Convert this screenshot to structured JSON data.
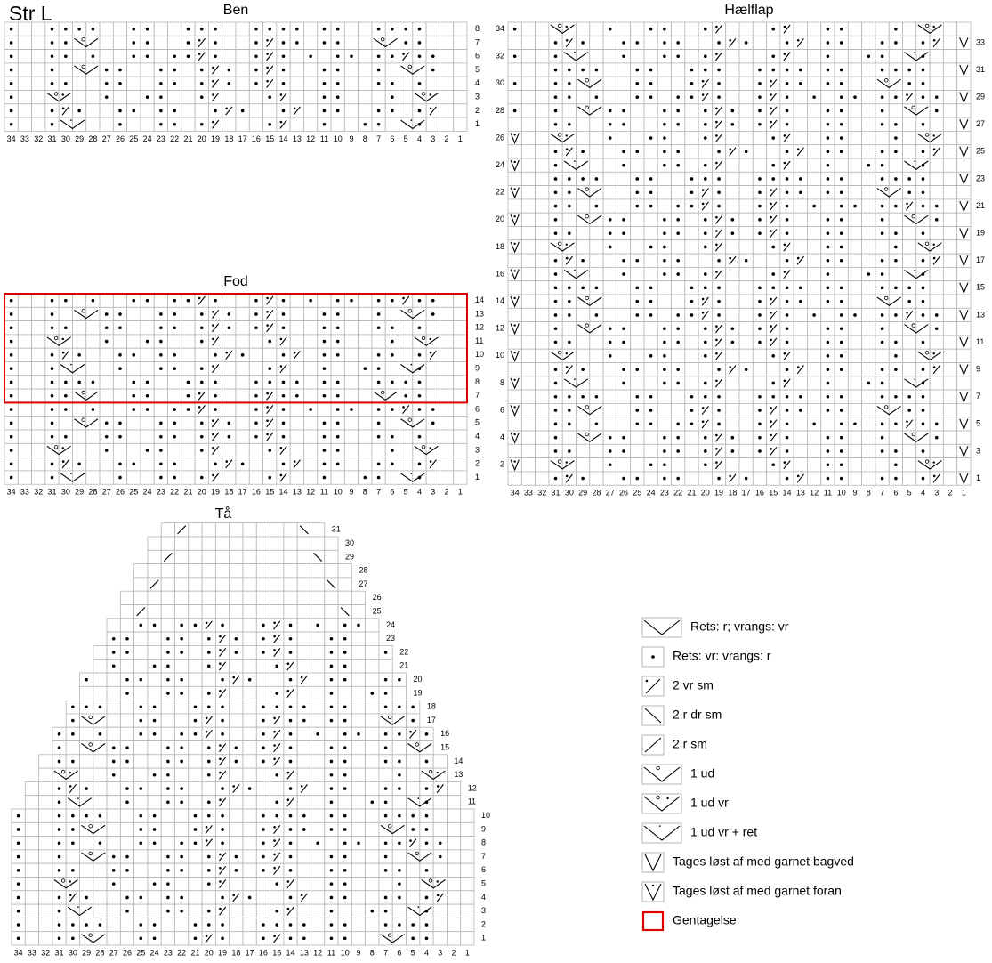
{
  "title": "Str L",
  "charts": [
    {
      "title": "Ben",
      "columns": [
        34,
        33,
        32,
        31,
        30,
        29,
        28,
        27,
        26,
        25,
        24,
        23,
        22,
        21,
        20,
        19,
        18,
        17,
        16,
        15,
        14,
        13,
        12,
        11,
        10,
        9,
        8,
        7,
        6,
        5,
        4,
        3,
        2,
        1
      ],
      "rows": [
        8,
        7,
        6,
        5,
        4,
        3,
        2,
        1
      ]
    },
    {
      "title": "Fod",
      "columns": [
        34,
        33,
        32,
        31,
        30,
        29,
        28,
        27,
        26,
        25,
        24,
        23,
        22,
        21,
        20,
        19,
        18,
        17,
        16,
        15,
        14,
        13,
        12,
        11,
        10,
        9,
        8,
        7,
        6,
        5,
        4,
        3,
        2,
        1
      ],
      "rows": [
        14,
        13,
        12,
        11,
        10,
        9,
        8,
        7,
        6,
        5,
        4,
        3,
        2,
        1
      ]
    },
    {
      "title": "Hælflap",
      "columns": [
        34,
        33,
        32,
        31,
        30,
        29,
        28,
        27,
        26,
        25,
        24,
        23,
        22,
        21,
        20,
        19,
        18,
        17,
        16,
        15,
        14,
        13,
        12,
        11,
        10,
        9,
        8,
        7,
        6,
        5,
        4,
        3,
        2,
        1
      ],
      "rows": [
        34,
        33,
        32,
        31,
        30,
        29,
        28,
        27,
        26,
        25,
        24,
        23,
        22,
        21,
        20,
        19,
        18,
        17,
        16,
        15,
        14,
        13,
        12,
        11,
        10,
        9,
        8,
        7,
        6,
        5,
        4,
        3,
        2,
        1
      ]
    },
    {
      "title": "Tå",
      "columns": [
        34,
        33,
        32,
        31,
        30,
        29,
        28,
        27,
        26,
        25,
        24,
        23,
        22,
        21,
        20,
        19,
        18,
        17,
        16,
        15,
        14,
        13,
        12,
        11,
        10,
        9,
        8,
        7,
        6,
        5,
        4,
        3,
        2,
        1
      ],
      "rows": [
        31,
        30,
        29,
        28,
        27,
        26,
        25,
        24,
        23,
        22,
        21,
        20,
        19,
        18,
        17,
        16,
        15,
        14,
        13,
        12,
        11,
        10,
        9,
        8,
        7,
        6,
        5,
        4,
        3,
        2,
        1
      ]
    }
  ],
  "legend": [
    "Rets: r; vrangs: vr",
    "Rets: vr: vrangs: r",
    "2 vr sm",
    "2 r dr sm",
    "2 r sm",
    "1 ud",
    "1 ud vr",
    "1 ud vr + ret",
    "Tages løst af med garnet bagved",
    "Tages løst af med garnet foran",
    "Gentagelse"
  ]
}
